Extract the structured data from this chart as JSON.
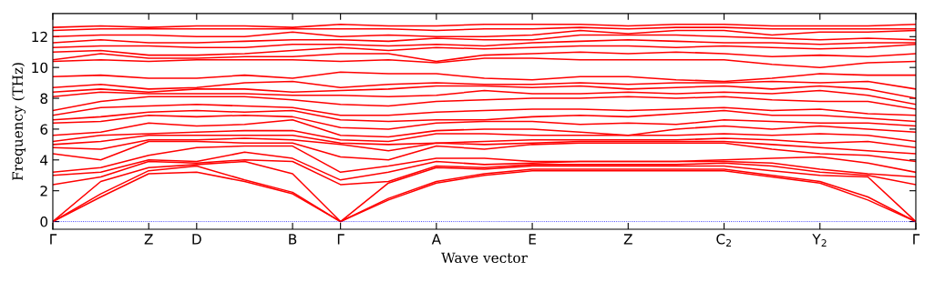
{
  "chart_data": {
    "type": "line",
    "xlabel": "Wave vector",
    "ylabel": "Frequency (THz)",
    "categories": [
      "Γ",
      null,
      "Z",
      "D",
      null,
      "B",
      "Γ",
      null,
      "A",
      null,
      "E",
      null,
      "Z",
      null,
      "C$_{2}$",
      null,
      "Y$_{2}$",
      null,
      "Γ"
    ],
    "ylim": [
      -0.5,
      13.5
    ],
    "yticks": [
      0,
      2,
      4,
      6,
      8,
      10,
      12
    ],
    "ref_lines": [
      {
        "axis": "y",
        "value": 0,
        "color": "#0000ff",
        "line_style": "dotted"
      }
    ],
    "series": [
      {
        "color": "#ff0000",
        "values": [
          0,
          1.6,
          3.1,
          3.2,
          2.6,
          1.8,
          0,
          1.4,
          2.5,
          3.0,
          3.3,
          3.3,
          3.3,
          3.3,
          3.3,
          2.9,
          2.5,
          1.4,
          0
        ]
      },
      {
        "color": "#ff0000",
        "values": [
          0,
          1.8,
          3.3,
          3.6,
          2.7,
          1.9,
          0,
          1.5,
          2.6,
          3.1,
          3.4,
          3.4,
          3.4,
          3.4,
          3.4,
          3.0,
          2.6,
          1.6,
          0
        ]
      },
      {
        "color": "#ff0000",
        "values": [
          0,
          2.6,
          3.5,
          3.7,
          3.9,
          3.1,
          0,
          2.5,
          3.5,
          3.4,
          3.6,
          3.6,
          3.6,
          3.6,
          3.6,
          3.3,
          3.0,
          2.9,
          0
        ]
      },
      {
        "color": "#ff0000",
        "values": [
          2.4,
          2.9,
          3.9,
          3.8,
          4.0,
          3.9,
          2.4,
          2.6,
          3.6,
          3.5,
          3.7,
          3.7,
          3.7,
          3.7,
          3.8,
          3.6,
          3.2,
          3.0,
          2.4
        ]
      },
      {
        "color": "#ff0000",
        "values": [
          3.0,
          3.2,
          4.0,
          3.9,
          4.5,
          4.1,
          2.7,
          3.2,
          3.9,
          3.7,
          3.8,
          3.9,
          3.9,
          3.9,
          3.9,
          3.8,
          3.4,
          3.1,
          2.9
        ]
      },
      {
        "color": "#ff0000",
        "values": [
          3.2,
          3.5,
          4.3,
          4.8,
          4.9,
          4.9,
          3.2,
          3.6,
          4.1,
          4.1,
          3.9,
          3.9,
          3.9,
          3.9,
          4.0,
          4.1,
          4.2,
          3.8,
          3.2
        ]
      },
      {
        "color": "#ff0000",
        "values": [
          4.4,
          4.0,
          5.2,
          5.2,
          5.1,
          5.1,
          4.2,
          4.0,
          4.9,
          4.7,
          5.0,
          5.1,
          5.1,
          5.1,
          5.1,
          4.7,
          4.4,
          4.3,
          3.9
        ]
      },
      {
        "color": "#ff0000",
        "values": [
          4.8,
          4.7,
          5.3,
          5.3,
          5.4,
          5.3,
          5.0,
          4.6,
          5.1,
          5.0,
          5.1,
          5.2,
          5.2,
          5.2,
          5.2,
          5.0,
          4.8,
          4.6,
          4.4
        ]
      },
      {
        "color": "#ff0000",
        "values": [
          5.0,
          5.2,
          5.6,
          5.6,
          5.6,
          5.6,
          5.1,
          5.0,
          5.1,
          5.2,
          5.3,
          5.3,
          5.3,
          5.3,
          5.4,
          5.3,
          5.1,
          5.2,
          4.8
        ]
      },
      {
        "color": "#ff0000",
        "values": [
          5.2,
          5.6,
          5.7,
          5.8,
          5.9,
          5.9,
          5.3,
          5.2,
          5.7,
          5.7,
          5.6,
          5.6,
          5.6,
          5.6,
          5.7,
          5.6,
          5.7,
          5.6,
          5.2
        ]
      },
      {
        "color": "#ff0000",
        "values": [
          5.6,
          5.8,
          6.4,
          6.2,
          6.3,
          6.6,
          5.6,
          5.5,
          5.9,
          6.0,
          6.0,
          5.8,
          5.6,
          6.0,
          6.2,
          6.0,
          6.2,
          6.0,
          5.8
        ]
      },
      {
        "color": "#ff0000",
        "values": [
          6.4,
          6.5,
          6.9,
          6.8,
          6.9,
          6.8,
          6.1,
          6.0,
          6.4,
          6.5,
          6.5,
          6.3,
          6.4,
          6.3,
          6.6,
          6.5,
          6.4,
          6.4,
          6.2
        ]
      },
      {
        "color": "#ff0000",
        "values": [
          6.6,
          6.8,
          7.1,
          7.2,
          7.1,
          7.2,
          6.6,
          6.5,
          6.6,
          6.6,
          6.8,
          6.9,
          6.8,
          7.0,
          7.2,
          6.9,
          6.9,
          6.7,
          6.5
        ]
      },
      {
        "color": "#ff0000",
        "values": [
          6.9,
          7.4,
          7.5,
          7.6,
          7.5,
          7.4,
          6.9,
          6.9,
          7.1,
          7.2,
          7.3,
          7.3,
          7.2,
          7.3,
          7.4,
          7.2,
          7.3,
          7.0,
          6.9
        ]
      },
      {
        "color": "#ff0000",
        "values": [
          7.2,
          7.8,
          8.1,
          8.1,
          8.1,
          7.9,
          7.6,
          7.5,
          7.8,
          7.9,
          8.0,
          8.0,
          8.1,
          8.0,
          8.1,
          7.9,
          7.8,
          7.8,
          7.3
        ]
      },
      {
        "color": "#ff0000",
        "values": [
          8.1,
          8.4,
          8.3,
          8.3,
          8.3,
          8.2,
          8.2,
          8.1,
          8.2,
          8.5,
          8.3,
          8.3,
          8.4,
          8.3,
          8.4,
          8.3,
          8.5,
          8.2,
          7.6
        ]
      },
      {
        "color": "#ff0000",
        "values": [
          8.4,
          8.6,
          8.4,
          8.6,
          8.6,
          8.4,
          8.5,
          8.6,
          8.8,
          8.8,
          8.7,
          8.8,
          8.6,
          8.7,
          8.8,
          8.6,
          8.8,
          8.6,
          8.0
        ]
      },
      {
        "color": "#ff0000",
        "values": [
          8.7,
          8.9,
          8.6,
          8.7,
          9.0,
          9.1,
          8.7,
          8.9,
          9.0,
          8.9,
          8.9,
          9.0,
          8.9,
          9.0,
          9.0,
          9.1,
          9.0,
          9.1,
          8.6
        ]
      },
      {
        "color": "#ff0000",
        "values": [
          9.4,
          9.5,
          9.3,
          9.3,
          9.5,
          9.3,
          9.7,
          9.6,
          9.6,
          9.3,
          9.2,
          9.4,
          9.4,
          9.2,
          9.1,
          9.3,
          9.6,
          9.5,
          9.5
        ]
      },
      {
        "color": "#ff0000",
        "values": [
          10.4,
          10.5,
          10.4,
          10.5,
          10.5,
          10.5,
          10.4,
          10.5,
          10.3,
          10.6,
          10.6,
          10.5,
          10.5,
          10.5,
          10.5,
          10.2,
          10.0,
          10.3,
          10.4
        ]
      },
      {
        "color": "#ff0000",
        "values": [
          10.5,
          10.9,
          10.6,
          10.6,
          10.7,
          10.7,
          10.9,
          10.9,
          10.4,
          10.8,
          10.9,
          11.0,
          10.9,
          11.0,
          10.9,
          10.7,
          10.8,
          10.7,
          10.9
        ]
      },
      {
        "color": "#ff0000",
        "values": [
          11.0,
          11.1,
          10.8,
          10.8,
          10.9,
          11.1,
          11.3,
          11.1,
          11.3,
          11.2,
          11.3,
          11.4,
          11.4,
          11.3,
          11.4,
          11.3,
          11.2,
          11.3,
          11.5
        ]
      },
      {
        "color": "#ff0000",
        "values": [
          11.3,
          11.4,
          11.4,
          11.3,
          11.3,
          11.5,
          11.5,
          11.4,
          11.5,
          11.4,
          11.6,
          11.7,
          11.8,
          11.7,
          11.6,
          11.6,
          11.5,
          11.6,
          11.6
        ]
      },
      {
        "color": "#ff0000",
        "values": [
          11.6,
          11.8,
          11.6,
          11.6,
          11.7,
          11.8,
          11.8,
          11.7,
          11.9,
          11.8,
          11.8,
          12.1,
          12.1,
          12.1,
          12.0,
          11.9,
          11.8,
          11.9,
          11.8
        ]
      },
      {
        "color": "#ff0000",
        "values": [
          12.0,
          12.1,
          12.1,
          12.0,
          12.0,
          12.3,
          12.0,
          12.1,
          12.0,
          12.0,
          12.1,
          12.4,
          12.2,
          12.4,
          12.4,
          12.1,
          12.3,
          12.3,
          12.4
        ]
      },
      {
        "color": "#ff0000",
        "values": [
          12.4,
          12.5,
          12.5,
          12.5,
          12.5,
          12.5,
          12.5,
          12.5,
          12.4,
          12.5,
          12.5,
          12.6,
          12.5,
          12.6,
          12.6,
          12.5,
          12.5,
          12.5,
          12.5
        ]
      },
      {
        "color": "#ff0000",
        "values": [
          12.6,
          12.7,
          12.6,
          12.7,
          12.7,
          12.6,
          12.8,
          12.7,
          12.7,
          12.8,
          12.8,
          12.8,
          12.7,
          12.8,
          12.8,
          12.7,
          12.7,
          12.7,
          12.8
        ]
      }
    ]
  }
}
